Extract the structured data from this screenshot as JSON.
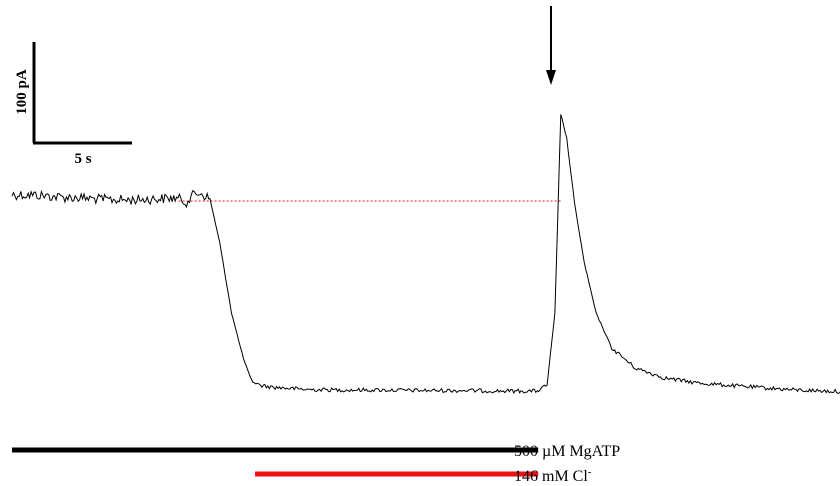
{
  "chart_data": {
    "type": "line",
    "trace": {
      "t_s": [
        0.0,
        1.2,
        2.4,
        3.6,
        4.8,
        6.0,
        7.2,
        8.4,
        8.9,
        9.3,
        9.6,
        10.1,
        10.6,
        11.2,
        11.8,
        12.2,
        12.6,
        13.2,
        15.0,
        17.0,
        19.0,
        21.0,
        23.0,
        25.0,
        26.8,
        27.3,
        27.7,
        28.0,
        28.3,
        28.7,
        29.2,
        29.8,
        30.6,
        31.8,
        33.3,
        35.0,
        37.0,
        40.0,
        43.0,
        45.0
      ],
      "current_pA": [
        18.5,
        18.0,
        16.0,
        15.0,
        13.5,
        13.0,
        14.0,
        15.0,
        11.0,
        19.0,
        20.0,
        14.0,
        -30.0,
        -100.0,
        -145.0,
        -167.0,
        -172.0,
        -174.0,
        -176.5,
        -177.0,
        -177.0,
        -177.5,
        -177.5,
        -178.0,
        -178.0,
        -172.0,
        -100.0,
        99.0,
        75.0,
        10.0,
        -50.0,
        -100.0,
        -135.0,
        -155.0,
        -165.0,
        -170.0,
        -173.0,
        -177.0,
        -179.0,
        -180.0
      ]
    },
    "baseline_pA": 12.0,
    "peak_pA": 99.0,
    "scale_bar": {
      "current_label": "100 pA",
      "time_label": "5 s"
    },
    "application_bars": [
      {
        "label_value": "500",
        "label_unit": "µM MgATP",
        "start_s": 0.0,
        "end_s": 27.0,
        "color": "#000000"
      },
      {
        "label_value": "146 mM Cl",
        "label_sup": "-",
        "start_s": 12.4,
        "end_s": 27.0,
        "color": "#ee1111"
      }
    ],
    "annotations": [
      {
        "kind": "arrow",
        "points_to": "peak",
        "t_s": 27.5
      }
    ],
    "colors": {
      "trace": "#000000",
      "baseline_line": "#cc2222"
    }
  }
}
